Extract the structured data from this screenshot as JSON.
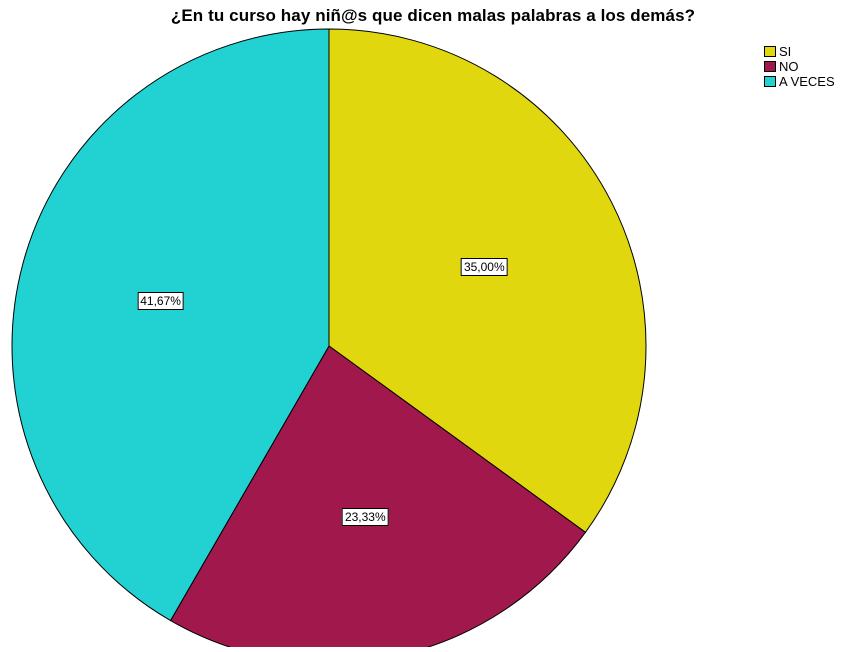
{
  "chart_data": {
    "type": "pie",
    "title": "¿En tu curso hay niñ@s que dicen malas palabras a los demás?",
    "categories": [
      "SI",
      "NO",
      "A VECES"
    ],
    "values": [
      35.0,
      23.33,
      41.67
    ],
    "data_labels": [
      "35,00%",
      "23,33%",
      "41,67%"
    ],
    "colors": [
      "#e1d70f",
      "#a1184d",
      "#22d2d2"
    ],
    "legend_placement": "top-right",
    "start_angle": "12 o'clock",
    "direction": "clockwise"
  }
}
